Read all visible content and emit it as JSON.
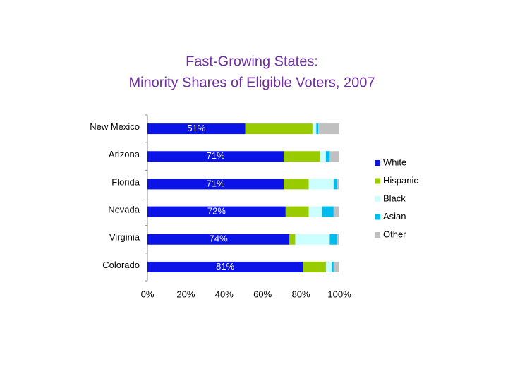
{
  "chart_data": {
    "type": "stacked-bar-horizontal",
    "title": [
      "Fast-Growing States:",
      "Minority Shares of Eligible Voters, 2007"
    ],
    "categories": [
      "New Mexico",
      "Arizona",
      "Florida",
      "Nevada",
      "Virginia",
      "Colorado"
    ],
    "series": [
      {
        "name": "White",
        "color": "#0a14e6",
        "values": [
          51,
          71,
          71,
          72,
          74,
          81
        ],
        "value_labels": [
          "51%",
          "71%",
          "71%",
          "72%",
          "74%",
          "81%"
        ]
      },
      {
        "name": "Hispanic",
        "color": "#99cc00",
        "values": [
          35,
          19,
          13,
          12,
          3,
          12
        ]
      },
      {
        "name": "Black",
        "color": "#ccffff",
        "values": [
          2,
          3,
          13,
          7,
          18,
          3
        ]
      },
      {
        "name": "Asian",
        "color": "#00bbee",
        "values": [
          1,
          2,
          2,
          6,
          4,
          1
        ]
      },
      {
        "name": "Other",
        "color": "#c0c0c0",
        "values": [
          11,
          5,
          1,
          3,
          1,
          3
        ]
      }
    ],
    "xlim": [
      0,
      100
    ],
    "xticks": [
      {
        "value": 0,
        "label": "0%"
      },
      {
        "value": 20,
        "label": "20%"
      },
      {
        "value": 40,
        "label": "40%"
      },
      {
        "value": 60,
        "label": "60%"
      },
      {
        "value": 80,
        "label": "80%"
      },
      {
        "value": 100,
        "label": "100%"
      }
    ],
    "legend": "right"
  }
}
